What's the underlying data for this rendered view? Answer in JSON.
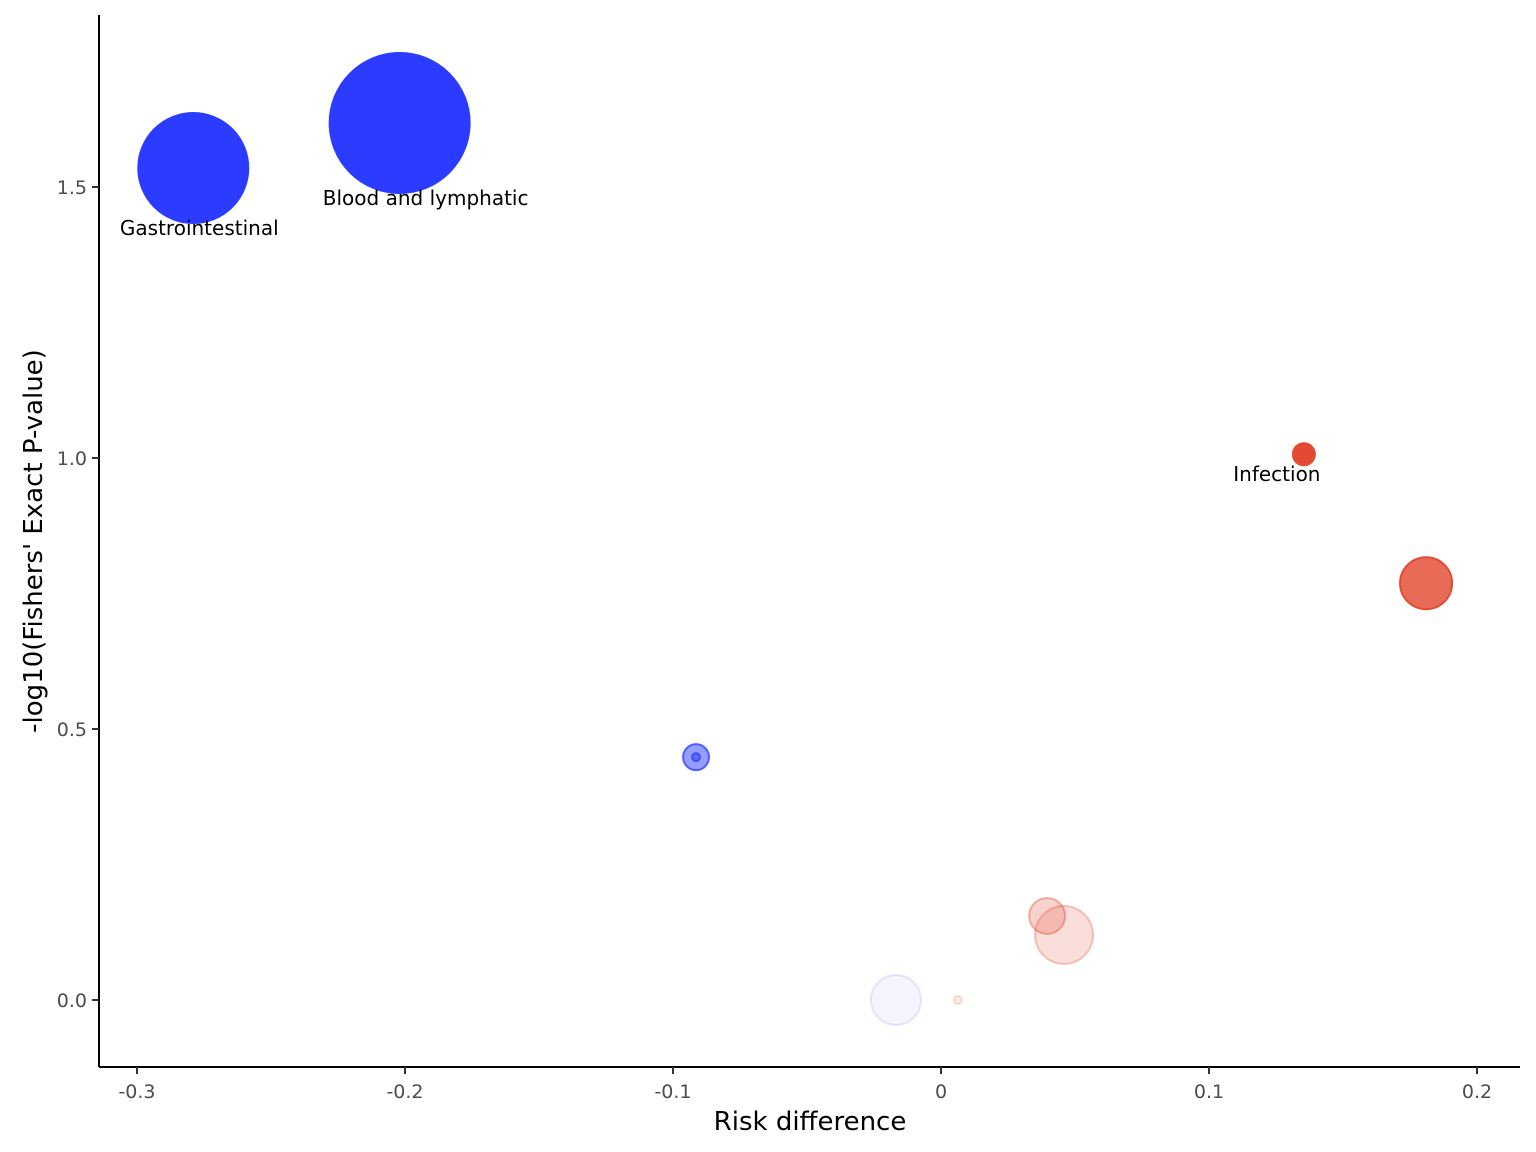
{
  "chart_data": {
    "type": "scatter",
    "title": "",
    "xlabel": "Risk difference",
    "ylabel": "-log10(Fishers' Exact P-value)",
    "xlim": [
      -0.314,
      0.215
    ],
    "ylim": [
      -0.125,
      1.815
    ],
    "xticks": [
      -0.3,
      -0.2,
      -0.1,
      0,
      0.1,
      0.2
    ],
    "xtick_labels": [
      "-0.3",
      "-0.2",
      "-0.1",
      "0",
      "0.1",
      "0.2"
    ],
    "yticks": [
      0,
      0.5,
      1.0,
      1.5
    ],
    "ytick_labels": [
      "0.0",
      "0.5",
      "1.0",
      "1.5"
    ],
    "grid": false,
    "legend": "none",
    "points": [
      {
        "x": -0.279,
        "y": 1.535,
        "size": 55,
        "color": "#2b3bff",
        "opacity": 1.0,
        "label": "Gastrointestinal"
      },
      {
        "x": -0.202,
        "y": 1.618,
        "size": 70,
        "color": "#2b3bff",
        "opacity": 1.0,
        "label": "Blood and lymphatic"
      },
      {
        "x": 0.1354,
        "y": 1.007,
        "size": 11,
        "color": "#e34a33",
        "opacity": 1.0,
        "label": "Infection"
      },
      {
        "x": 0.181,
        "y": 0.769,
        "size": 26,
        "color": "#e34a33",
        "opacity": 0.82,
        "label": ""
      },
      {
        "x": -0.0914,
        "y": 0.448,
        "size": 13,
        "color": "#2b3bff",
        "opacity": 0.5,
        "label": ""
      },
      {
        "x": -0.0914,
        "y": 0.448,
        "size": 4,
        "color": "#2b3bff",
        "opacity": 0.5,
        "label": ""
      },
      {
        "x": 0.0396,
        "y": 0.155,
        "size": 18,
        "color": "#e34a33",
        "opacity": 0.25,
        "label": ""
      },
      {
        "x": 0.0459,
        "y": 0.12,
        "size": 29,
        "color": "#e34a33",
        "opacity": 0.18,
        "label": ""
      },
      {
        "x": -0.0168,
        "y": 0.0,
        "size": 25,
        "color": "#2b3bff",
        "opacity": 0.05,
        "label": ""
      },
      {
        "x": 0.0063,
        "y": 0.0,
        "size": 4,
        "color": "#e34a33",
        "opacity": 0.1,
        "label": ""
      }
    ]
  }
}
